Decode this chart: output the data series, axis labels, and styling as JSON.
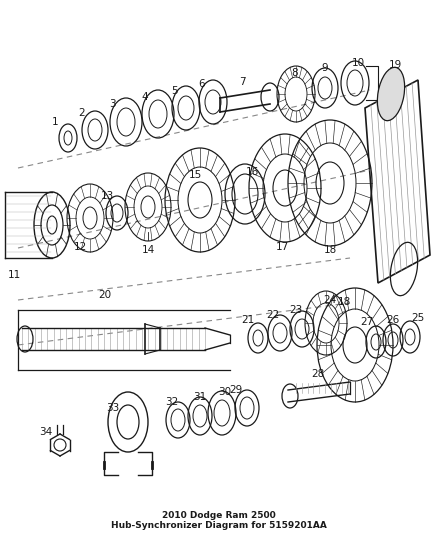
{
  "bg_color": "#ffffff",
  "line_color": "#1a1a1a",
  "fig_width": 4.38,
  "fig_height": 5.33,
  "dpi": 100,
  "title1": "2010 Dodge Ram 2500",
  "title2": "Hub-Synchronizer Diagram for 5159201AA"
}
